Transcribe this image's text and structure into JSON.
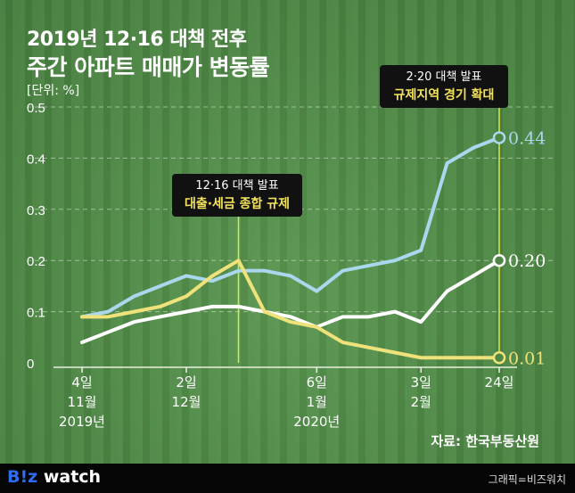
{
  "title_line1": "2019년 12·16 대책 전후",
  "title_line2": "주간 아파트 매매가 변동률",
  "unit": "[단위: %]",
  "source": "자료: 한국부동산원",
  "footer": {
    "logo_b": "B!z",
    "logo_rest": " watch",
    "credit": "그래픽=비즈워치"
  },
  "annotations": [
    {
      "line1": "12·16 대책 발표",
      "line2": "대출·세금 종합 규제",
      "week": "2019-12-16"
    },
    {
      "line1": "2·20 대책 발표",
      "line2": "규제지역 경기 확대",
      "week": "2020-02-24"
    }
  ],
  "chart_data": {
    "type": "line",
    "title": "주간 아파트 매매가 변동률",
    "ylabel": "[단위: %]",
    "ylim": [
      0,
      0.5
    ],
    "yticks": [
      "0",
      "0.1",
      "0.2",
      "0.3",
      "0.4",
      "0.5"
    ],
    "grid": true,
    "x": [
      "2019-11-04",
      "2019-11-11",
      "2019-11-18",
      "2019-11-25",
      "2019-12-02",
      "2019-12-09",
      "2019-12-16",
      "2019-12-23",
      "2019-12-30",
      "2020-01-06",
      "2020-01-13",
      "2020-01-20",
      "2020-01-27",
      "2020-02-03",
      "2020-02-10",
      "2020-02-17",
      "2020-02-24"
    ],
    "xticks": [
      {
        "index": 0,
        "day": "4일",
        "month": "11월",
        "year": "2019년"
      },
      {
        "index": 4,
        "day": "2일",
        "month": "12월",
        "year": ""
      },
      {
        "index": 9,
        "day": "6일",
        "month": "1월",
        "year": "2020년"
      },
      {
        "index": 13,
        "day": "3일",
        "month": "2월",
        "year": ""
      },
      {
        "index": 16,
        "day": "24일",
        "month": "",
        "year": ""
      }
    ],
    "series": [
      {
        "color": "#a9d8ee",
        "values": [
          0.09,
          0.1,
          0.13,
          0.15,
          0.17,
          0.16,
          0.18,
          0.18,
          0.17,
          0.14,
          0.18,
          0.19,
          0.2,
          0.22,
          0.39,
          0.42,
          0.44
        ],
        "end_label": "0.44"
      },
      {
        "color": "#ffffff",
        "values": [
          0.04,
          0.06,
          0.08,
          0.09,
          0.1,
          0.11,
          0.11,
          0.1,
          0.09,
          0.07,
          0.09,
          0.09,
          0.1,
          0.08,
          0.14,
          0.17,
          0.2
        ],
        "end_label": "0.20"
      },
      {
        "color": "#efe27a",
        "values": [
          0.09,
          0.09,
          0.1,
          0.11,
          0.13,
          0.17,
          0.2,
          0.1,
          0.08,
          0.07,
          0.04,
          0.03,
          0.02,
          0.01,
          0.01,
          0.01,
          0.01
        ],
        "end_label": "0.01"
      }
    ]
  }
}
